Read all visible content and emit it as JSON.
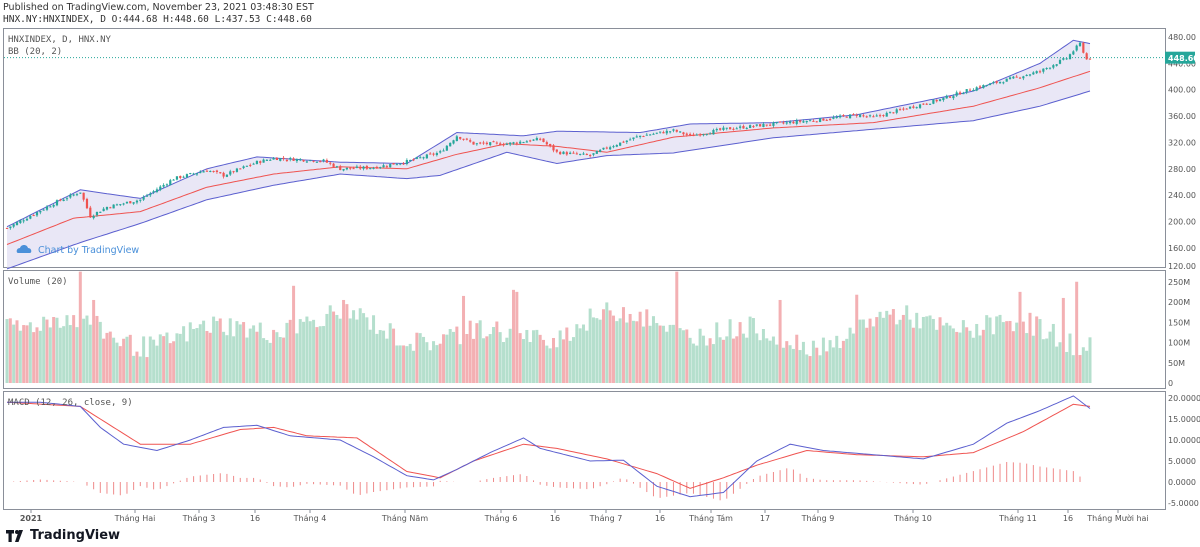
{
  "published": "Published on TradingView.com, November 23, 2021 03:48:30 EST",
  "header_line": "HNX.NY:HNXINDEX, D O:444.68 H:448.60 L:437.53 C:448.60",
  "brand": "TradingView",
  "watermark": "Chart by TradingView",
  "colors": {
    "up": "#26a69a",
    "down": "#ef5350",
    "band_fill": "#d7d4ee",
    "band_line": "#5b5fcf",
    "basis": "#ef5350",
    "macd": "#5b5fcf",
    "signal": "#ef5350",
    "vol_up": "#b5dfcd",
    "vol_down": "#f3b0b3",
    "last_price_bg": "#26a69a"
  },
  "chart_data": [
    {
      "type": "candlestick",
      "title": "HNXINDEX, D, HNX.NY",
      "indicator": "BB (20, 2)",
      "last_price": "448.60",
      "y_ticks": [
        "480.00",
        "440.00",
        "400.00",
        "360.00",
        "320.00",
        "280.00",
        "240.00",
        "200.00",
        "160.00",
        "120.00"
      ],
      "ylim": [
        120,
        484
      ],
      "x_ticks": [
        "2021",
        "Tháng Hai",
        "Tháng 3",
        "16",
        "Tháng 4",
        "Tháng Năm",
        "Tháng 6",
        "16",
        "Tháng 7",
        "16",
        "Tháng Tám",
        "17",
        "Tháng 9",
        "Tháng 10",
        "Tháng 11",
        "16",
        "Tháng Mười hai"
      ],
      "close_anchors": [
        [
          0,
          190
        ],
        [
          15,
          230
        ],
        [
          22,
          245
        ],
        [
          25,
          208
        ],
        [
          30,
          222
        ],
        [
          40,
          233
        ],
        [
          50,
          265
        ],
        [
          60,
          278
        ],
        [
          65,
          270
        ],
        [
          75,
          290
        ],
        [
          80,
          296
        ],
        [
          95,
          292
        ],
        [
          100,
          280
        ],
        [
          110,
          282
        ],
        [
          120,
          291
        ],
        [
          130,
          305
        ],
        [
          135,
          330
        ],
        [
          140,
          318
        ],
        [
          150,
          318
        ],
        [
          160,
          325
        ],
        [
          165,
          305
        ],
        [
          175,
          300
        ],
        [
          180,
          312
        ],
        [
          190,
          330
        ],
        [
          200,
          338
        ],
        [
          205,
          330
        ],
        [
          215,
          340
        ],
        [
          230,
          348
        ],
        [
          245,
          355
        ],
        [
          255,
          362
        ],
        [
          260,
          358
        ],
        [
          270,
          372
        ],
        [
          280,
          385
        ],
        [
          290,
          402
        ],
        [
          300,
          415
        ],
        [
          310,
          428
        ],
        [
          318,
          448
        ],
        [
          322,
          470
        ],
        [
          324,
          446
        ],
        [
          325,
          449
        ]
      ],
      "bb_basis_anchors": [
        [
          0,
          165
        ],
        [
          20,
          205
        ],
        [
          40,
          215
        ],
        [
          60,
          252
        ],
        [
          80,
          272
        ],
        [
          100,
          283
        ],
        [
          120,
          280
        ],
        [
          135,
          302
        ],
        [
          150,
          318
        ],
        [
          165,
          314
        ],
        [
          180,
          305
        ],
        [
          200,
          328
        ],
        [
          230,
          342
        ],
        [
          260,
          350
        ],
        [
          290,
          375
        ],
        [
          310,
          403
        ],
        [
          325,
          428
        ]
      ],
      "bb_upper_anchors": [
        [
          0,
          192
        ],
        [
          22,
          248
        ],
        [
          40,
          235
        ],
        [
          60,
          280
        ],
        [
          75,
          298
        ],
        [
          100,
          290
        ],
        [
          120,
          288
        ],
        [
          135,
          335
        ],
        [
          155,
          330
        ],
        [
          165,
          337
        ],
        [
          190,
          335
        ],
        [
          205,
          348
        ],
        [
          230,
          350
        ],
        [
          255,
          362
        ],
        [
          290,
          398
        ],
        [
          310,
          440
        ],
        [
          320,
          475
        ],
        [
          325,
          470
        ]
      ],
      "bb_lower_anchors": [
        [
          0,
          128
        ],
        [
          22,
          168
        ],
        [
          40,
          197
        ],
        [
          60,
          233
        ],
        [
          80,
          255
        ],
        [
          100,
          272
        ],
        [
          120,
          265
        ],
        [
          130,
          270
        ],
        [
          150,
          305
        ],
        [
          165,
          288
        ],
        [
          180,
          300
        ],
        [
          200,
          304
        ],
        [
          230,
          327
        ],
        [
          260,
          340
        ],
        [
          290,
          353
        ],
        [
          310,
          375
        ],
        [
          325,
          398
        ]
      ]
    },
    {
      "type": "bar",
      "title": "Volume (20)",
      "y_ticks": [
        "250M",
        "200M",
        "150M",
        "100M",
        "50M",
        "0"
      ],
      "ylim": [
        0,
        270
      ],
      "high_volume_bars": [
        [
          22,
          275
        ],
        [
          26,
          205
        ],
        [
          86,
          240
        ],
        [
          101,
          205
        ],
        [
          137,
          215
        ],
        [
          152,
          230
        ],
        [
          153,
          225
        ],
        [
          201,
          275
        ],
        [
          232,
          205
        ],
        [
          255,
          218
        ],
        [
          304,
          225
        ],
        [
          317,
          210
        ],
        [
          321,
          250
        ]
      ]
    },
    {
      "type": "line",
      "title": "MACD (12, 26, close, 9)",
      "y_ticks": [
        "20.0000",
        "15.0000",
        "10.0000",
        "5.0000",
        "0.0000",
        "-5.0000"
      ],
      "ylim": [
        -7,
        21
      ],
      "macd_anchors": [
        [
          0,
          19
        ],
        [
          10,
          19
        ],
        [
          22,
          18
        ],
        [
          28,
          13
        ],
        [
          35,
          9
        ],
        [
          45,
          7.5
        ],
        [
          55,
          10
        ],
        [
          65,
          13
        ],
        [
          75,
          13.5
        ],
        [
          85,
          11
        ],
        [
          100,
          10
        ],
        [
          110,
          6
        ],
        [
          120,
          1.5
        ],
        [
          128,
          0.5
        ],
        [
          135,
          3
        ],
        [
          145,
          7
        ],
        [
          155,
          10.5
        ],
        [
          160,
          8
        ],
        [
          175,
          5
        ],
        [
          185,
          5.2
        ],
        [
          195,
          -1
        ],
        [
          205,
          -3.5
        ],
        [
          215,
          -2.5
        ],
        [
          225,
          5
        ],
        [
          235,
          9
        ],
        [
          245,
          7.5
        ],
        [
          260,
          6.5
        ],
        [
          275,
          5.5
        ],
        [
          290,
          9
        ],
        [
          300,
          14
        ],
        [
          310,
          17
        ],
        [
          320,
          20.5
        ],
        [
          325,
          17.5
        ]
      ],
      "signal_anchors": [
        [
          0,
          19
        ],
        [
          22,
          18
        ],
        [
          30,
          14
        ],
        [
          40,
          9
        ],
        [
          55,
          9
        ],
        [
          70,
          12.5
        ],
        [
          80,
          13
        ],
        [
          90,
          11
        ],
        [
          105,
          10.5
        ],
        [
          120,
          2.5
        ],
        [
          130,
          1
        ],
        [
          140,
          5
        ],
        [
          155,
          9
        ],
        [
          165,
          8
        ],
        [
          180,
          5.5
        ],
        [
          195,
          2
        ],
        [
          205,
          -1.5
        ],
        [
          215,
          1
        ],
        [
          225,
          4
        ],
        [
          240,
          7.5
        ],
        [
          255,
          6.5
        ],
        [
          275,
          6
        ],
        [
          290,
          7
        ],
        [
          305,
          12
        ],
        [
          320,
          18.5
        ],
        [
          325,
          18
        ]
      ]
    }
  ]
}
